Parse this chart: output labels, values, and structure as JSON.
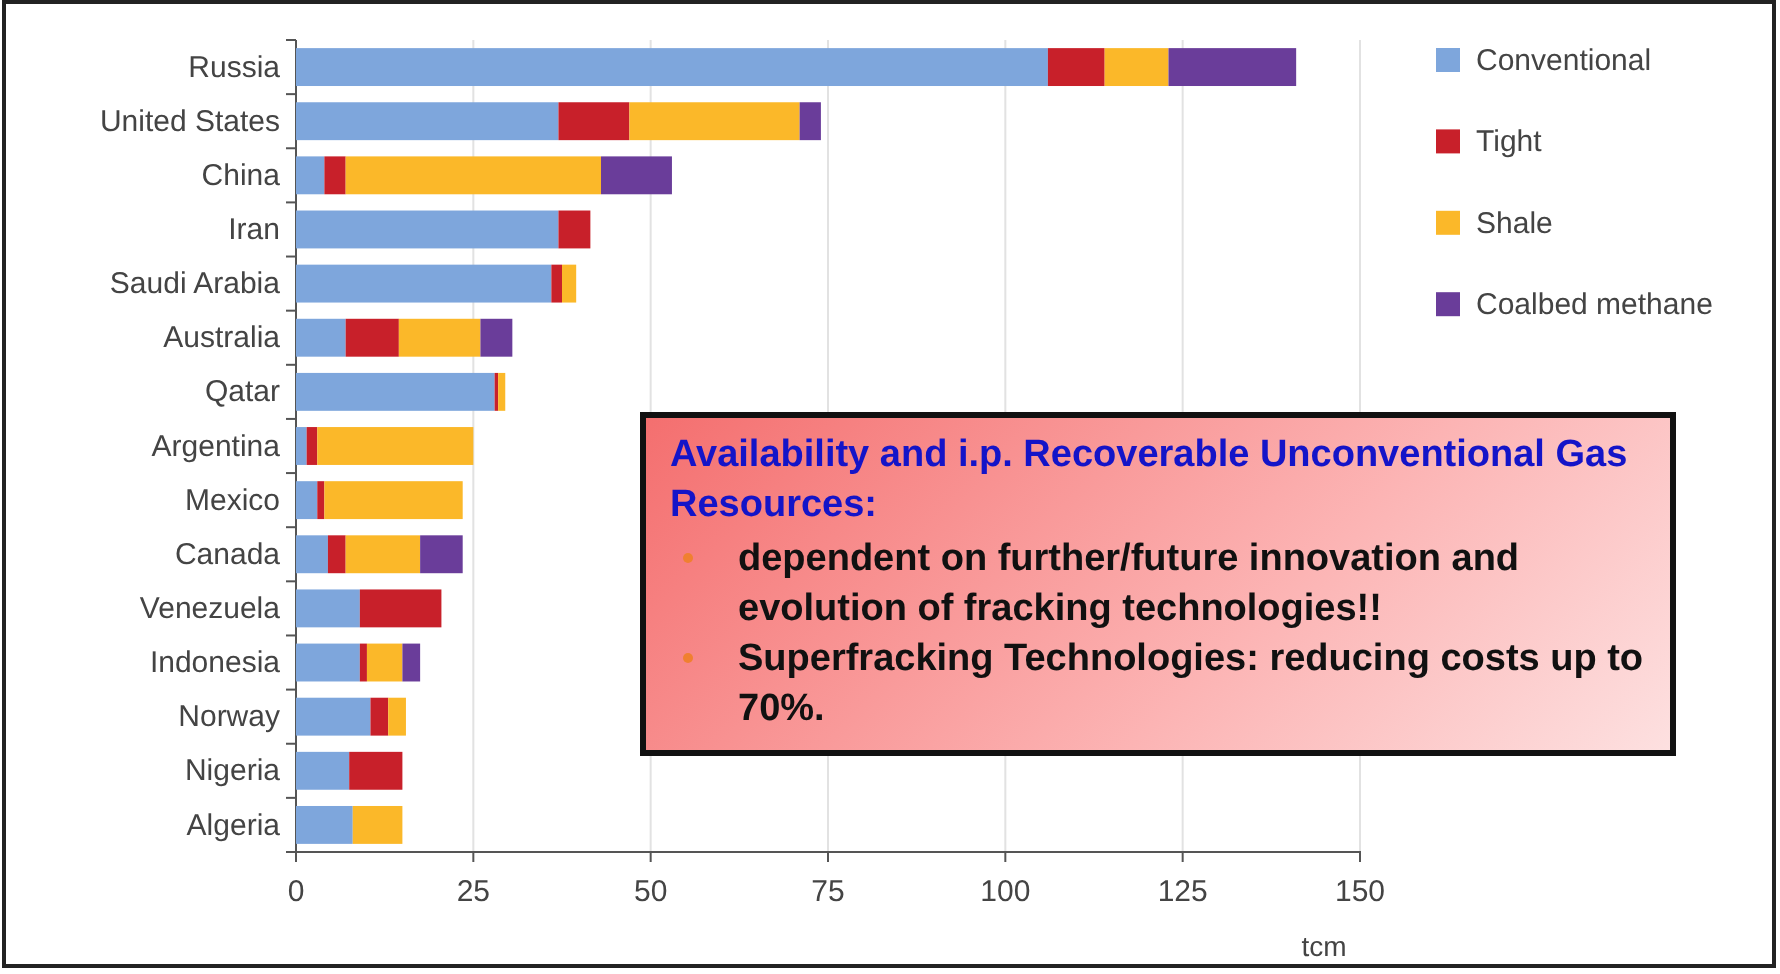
{
  "chart_data": {
    "type": "bar",
    "orientation": "horizontal",
    "stacked": true,
    "categories": [
      "Russia",
      "United States",
      "China",
      "Iran",
      "Saudi Arabia",
      "Australia",
      "Qatar",
      "Argentina",
      "Mexico",
      "Canada",
      "Venezuela",
      "Indonesia",
      "Norway",
      "Nigeria",
      "Algeria"
    ],
    "series": [
      {
        "name": "Conventional",
        "color": "#7ea6dc",
        "values": [
          106,
          37,
          4,
          37,
          36,
          7,
          28,
          1.5,
          3,
          4.5,
          9,
          9,
          10.5,
          7.5,
          8
        ]
      },
      {
        "name": "Tight",
        "color": "#c8202a",
        "values": [
          8,
          10,
          3,
          4.5,
          1.5,
          7.5,
          0.5,
          1.5,
          1,
          2.5,
          11.5,
          1,
          2.5,
          7.5,
          null
        ]
      },
      {
        "name": "Shale",
        "color": "#fbb829",
        "values": [
          9,
          24,
          36,
          null,
          2,
          11.5,
          1,
          22,
          19.5,
          10.5,
          null,
          5,
          2.5,
          null,
          7
        ]
      },
      {
        "name": "Coalbed methane",
        "color": "#6a3d9a",
        "values": [
          18,
          3,
          10,
          null,
          null,
          4.5,
          null,
          null,
          null,
          6,
          null,
          2.5,
          null,
          null,
          null
        ]
      }
    ],
    "xlim": [
      0,
      150
    ],
    "xticks": [
      0,
      25,
      50,
      75,
      100,
      125,
      150
    ],
    "xlabel": "tcm",
    "grid": "x",
    "legend": "right",
    "annotations": [
      "Availability and i.p. Recoverable Unconventional Gas Resources:",
      "dependent on further/future innovation and evolution of fracking technologies!!",
      "Superfracking Technologies: reducing costs up to 70%."
    ]
  }
}
